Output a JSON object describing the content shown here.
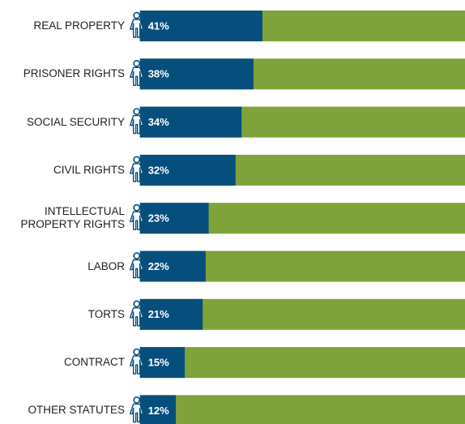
{
  "chart_data": {
    "type": "bar",
    "orientation": "horizontal",
    "categories": [
      "REAL PROPERTY",
      "PRISONER RIGHTS",
      "SOCIAL SECURITY",
      "CIVIL RIGHTS",
      "INTELLECTUAL\nPROPERTY RIGHTS",
      "LABOR",
      "TORTS",
      "CONTRACT",
      "OTHER STATUTES"
    ],
    "values": [
      41,
      38,
      34,
      32,
      23,
      22,
      21,
      15,
      12
    ],
    "value_labels": [
      "41%",
      "38%",
      "34%",
      "32%",
      "23%",
      "22%",
      "21%",
      "15%",
      "12%"
    ],
    "color": "#064f7d",
    "track_color": "#7fa23a",
    "xlim": [
      0,
      100
    ]
  }
}
